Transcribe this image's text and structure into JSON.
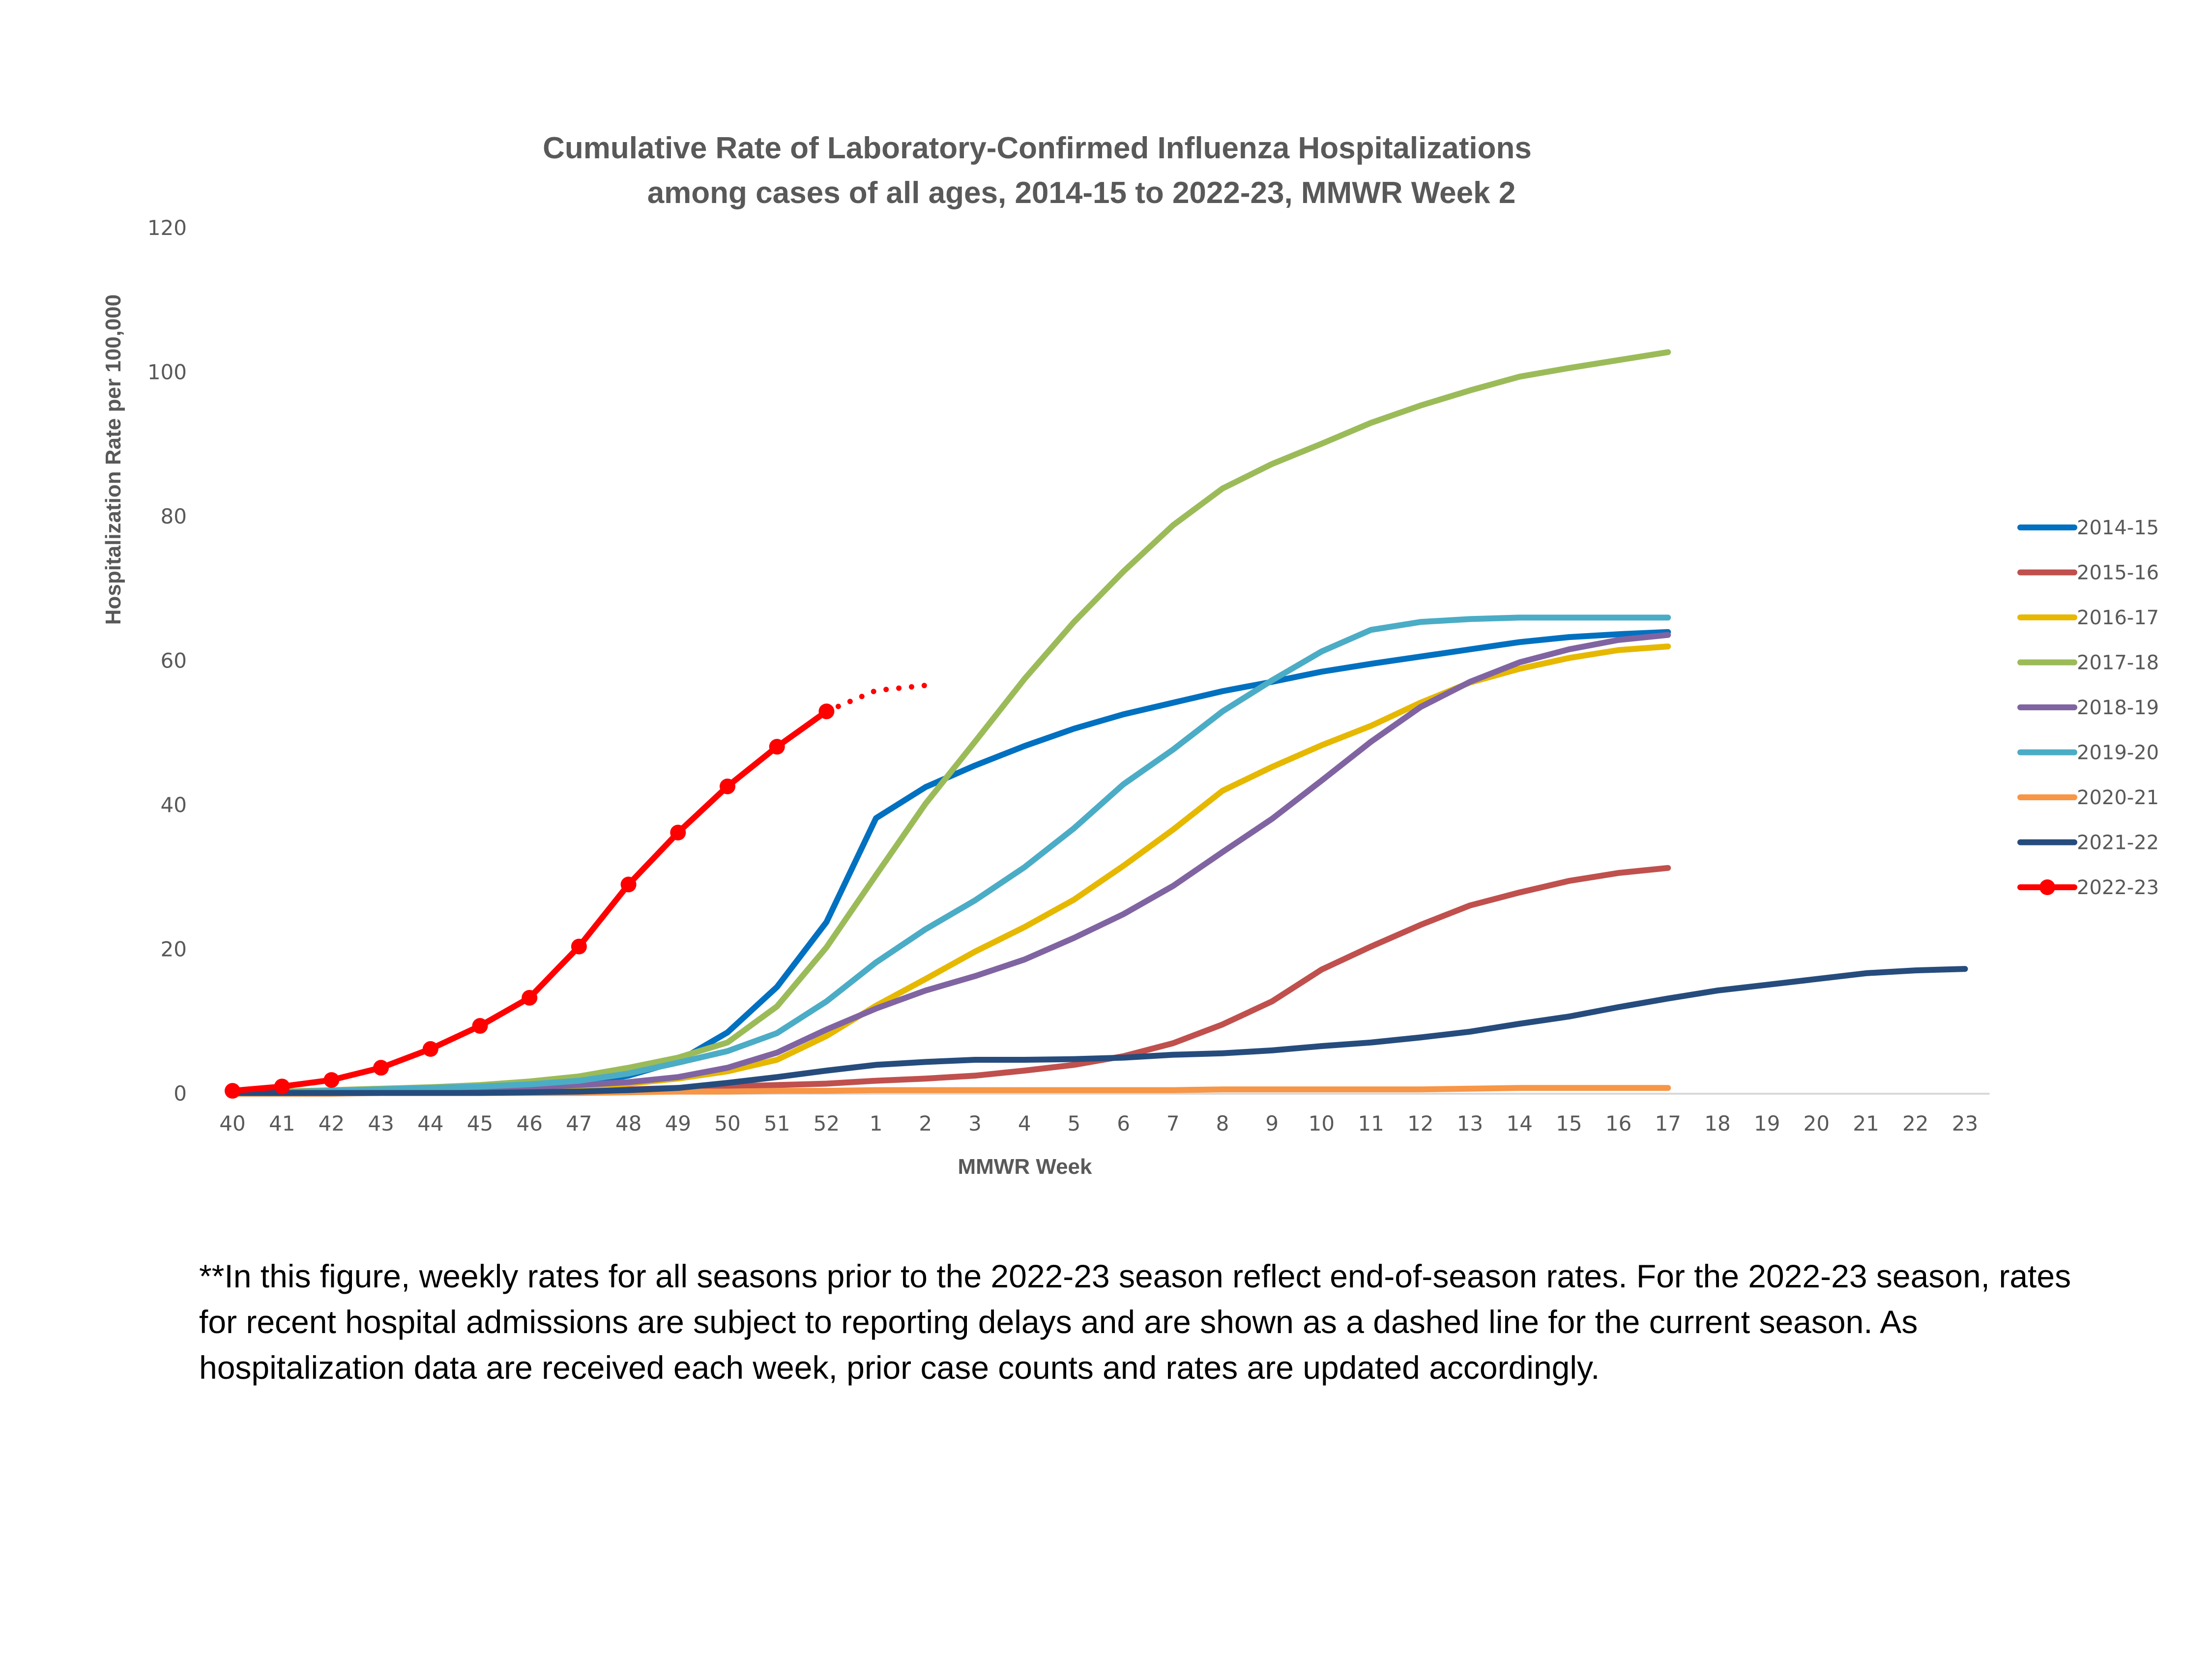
{
  "chart_data": {
    "type": "line",
    "title": "Cumulative Rate of Laboratory-Confirmed Influenza Hospitalizations",
    "subtitle": "among cases of all ages, 2014-15 to 2022-23, MMWR Week 2",
    "xlabel": "MMWR Week",
    "ylabel": "Hospitalization Rate per 100,000",
    "ylim": [
      0,
      120
    ],
    "yticks": [
      0,
      20,
      40,
      60,
      80,
      100,
      120
    ],
    "grid": false,
    "legend_position": "right",
    "categories": [
      "40",
      "41",
      "42",
      "43",
      "44",
      "45",
      "46",
      "47",
      "48",
      "49",
      "50",
      "51",
      "52",
      "1",
      "2",
      "3",
      "4",
      "5",
      "6",
      "7",
      "8",
      "9",
      "10",
      "11",
      "12",
      "13",
      "14",
      "15",
      "16",
      "17",
      "18",
      "19",
      "20",
      "21",
      "22",
      "23"
    ],
    "series": [
      {
        "name": "2014-15",
        "color": "#0070C0",
        "values": [
          0.1,
          0.2,
          0.3,
          0.4,
          0.6,
          0.8,
          1.1,
          1.5,
          2.5,
          4.5,
          8.5,
          14.8,
          23.8,
          38.2,
          42.5,
          45.5,
          48.2,
          50.6,
          52.6,
          54.2,
          55.8,
          57.1,
          58.5,
          59.6,
          60.6,
          61.6,
          62.6,
          63.3,
          63.7,
          64.0,
          null,
          null,
          null,
          null,
          null,
          null
        ]
      },
      {
        "name": "2015-16",
        "color": "#C0504D",
        "values": [
          0.1,
          0.1,
          0.1,
          0.2,
          0.2,
          0.3,
          0.4,
          0.5,
          0.6,
          0.8,
          1.0,
          1.2,
          1.4,
          1.8,
          2.1,
          2.5,
          3.2,
          4.0,
          5.2,
          7.0,
          9.6,
          12.8,
          17.2,
          20.4,
          23.4,
          26.1,
          27.9,
          29.5,
          30.6,
          31.3,
          null,
          null,
          null,
          null,
          null,
          null
        ]
      },
      {
        "name": "2016-17",
        "color": "#E6B800",
        "values": [
          0.1,
          0.1,
          0.2,
          0.3,
          0.4,
          0.6,
          0.8,
          1.0,
          1.4,
          2.1,
          3.1,
          4.7,
          8.0,
          12.2,
          15.9,
          19.7,
          23.1,
          26.9,
          31.6,
          36.6,
          42.0,
          45.3,
          48.3,
          51.0,
          54.2,
          57.0,
          58.9,
          60.4,
          61.5,
          62.0,
          null,
          null,
          null,
          null,
          null,
          null
        ]
      },
      {
        "name": "2017-18",
        "color": "#9BBB59",
        "values": [
          0.2,
          0.3,
          0.5,
          0.7,
          0.9,
          1.2,
          1.7,
          2.4,
          3.6,
          5.0,
          7.1,
          12.1,
          20.3,
          30.3,
          40.2,
          48.8,
          57.5,
          65.4,
          72.4,
          78.8,
          83.9,
          87.3,
          90.1,
          93.0,
          95.4,
          97.5,
          99.4,
          100.6,
          101.7,
          102.8,
          null,
          null,
          null,
          null,
          null,
          null
        ]
      },
      {
        "name": "2018-19",
        "color": "#8064A2",
        "values": [
          0.1,
          0.2,
          0.3,
          0.4,
          0.5,
          0.7,
          0.9,
          1.2,
          1.6,
          2.3,
          3.6,
          5.7,
          8.9,
          11.8,
          14.3,
          16.3,
          18.6,
          21.6,
          24.9,
          28.8,
          33.5,
          38.1,
          43.4,
          48.8,
          53.6,
          57.1,
          59.8,
          61.6,
          62.9,
          63.6,
          null,
          null,
          null,
          null,
          null,
          null
        ]
      },
      {
        "name": "2019-20",
        "color": "#4BACC6",
        "values": [
          0.1,
          0.2,
          0.4,
          0.6,
          0.8,
          1.0,
          1.3,
          1.8,
          2.8,
          4.3,
          5.9,
          8.4,
          12.8,
          18.2,
          22.8,
          26.8,
          31.4,
          36.8,
          42.9,
          47.7,
          53.0,
          57.3,
          61.3,
          64.3,
          65.4,
          65.8,
          66.0,
          66.0,
          66.0,
          66.0,
          null,
          null,
          null,
          null,
          null,
          null
        ]
      },
      {
        "name": "2020-21",
        "color": "#F79646",
        "values": [
          0.0,
          0.0,
          0.0,
          0.1,
          0.1,
          0.1,
          0.1,
          0.1,
          0.2,
          0.3,
          0.3,
          0.4,
          0.4,
          0.5,
          0.5,
          0.5,
          0.5,
          0.5,
          0.5,
          0.5,
          0.6,
          0.6,
          0.6,
          0.6,
          0.6,
          0.7,
          0.8,
          0.8,
          0.8,
          0.8,
          null,
          null,
          null,
          null,
          null,
          null
        ]
      },
      {
        "name": "2021-22",
        "color": "#264C7D",
        "values": [
          0.1,
          0.1,
          0.1,
          0.1,
          0.1,
          0.1,
          0.2,
          0.3,
          0.5,
          0.8,
          1.5,
          2.3,
          3.2,
          4.0,
          4.4,
          4.7,
          4.7,
          4.8,
          5.0,
          5.4,
          5.6,
          6.0,
          6.6,
          7.1,
          7.8,
          8.6,
          9.7,
          10.7,
          12.0,
          13.2,
          14.3,
          15.1,
          15.9,
          16.7,
          17.1,
          17.3
        ]
      },
      {
        "name": "2022-23",
        "color": "#FF0000",
        "marker": "circle",
        "values": [
          0.4,
          1.0,
          1.9,
          3.6,
          6.2,
          9.4,
          13.3,
          20.4,
          29.0,
          36.2,
          42.6,
          48.1,
          53.0,
          null,
          null,
          null,
          null,
          null,
          null,
          null,
          null,
          null,
          null,
          null,
          null,
          null,
          null,
          null,
          null,
          null,
          null,
          null,
          null,
          null,
          null,
          null
        ],
        "dashed_values": [
          null,
          null,
          null,
          null,
          null,
          null,
          null,
          null,
          null,
          null,
          null,
          null,
          53.0,
          55.9,
          56.6,
          null,
          null,
          null,
          null,
          null,
          null,
          null,
          null,
          null,
          null,
          null,
          null,
          null,
          null,
          null,
          null,
          null,
          null,
          null,
          null,
          null
        ]
      }
    ]
  },
  "footnote": "**In this figure, weekly rates for all seasons prior to the 2022-23 season reflect end-of-season rates. For the 2022-23 season, rates for recent hospital admissions are subject to reporting delays and are shown as a dashed line for the current season. As hospitalization data are received each week, prior case counts and rates are updated accordingly."
}
